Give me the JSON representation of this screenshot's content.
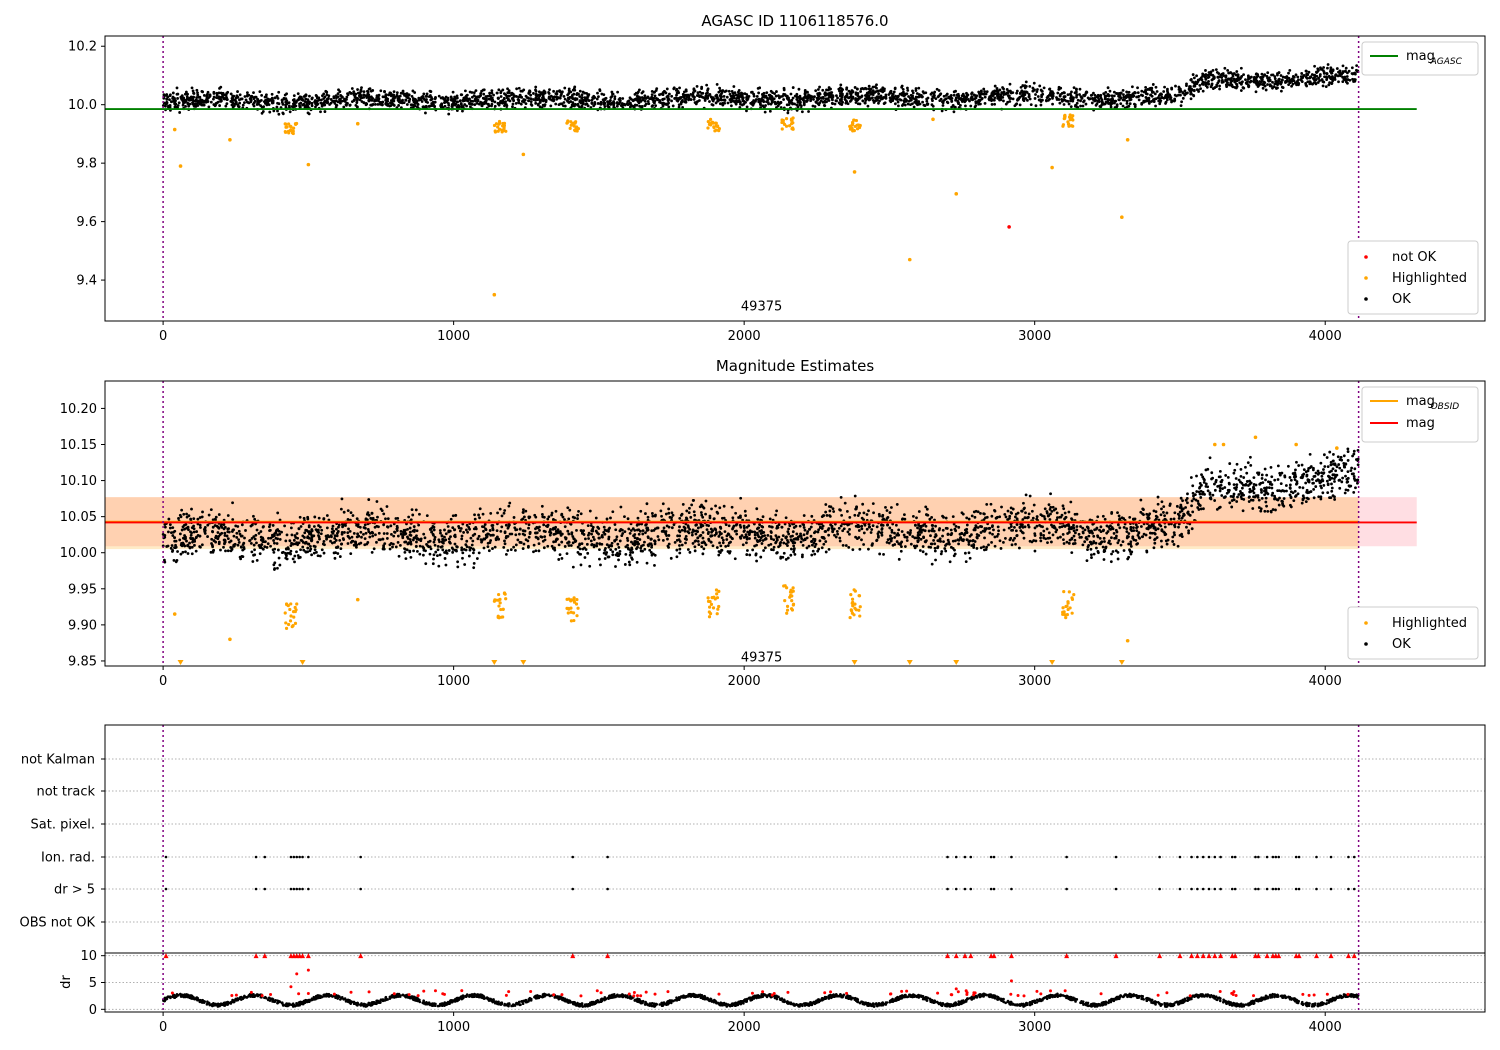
{
  "chart_data": [
    {
      "type": "scatter",
      "title": "AGASC ID 1106118576.0",
      "xlim": [
        -200,
        4550
      ],
      "ylim": [
        9.26,
        10.235
      ],
      "xticks": [
        "0",
        "1000",
        "2000",
        "3000",
        "4000"
      ],
      "yticks": [
        "9.4",
        "9.6",
        "9.8",
        "10.0",
        "10.2"
      ],
      "vlines": [
        0,
        4115
      ],
      "annotation": {
        "x": 2060,
        "y": 9.31,
        "text": "49375"
      },
      "lines": [
        {
          "name": "mag",
          "sub": "AGASC",
          "color": "#008000",
          "value": 9.985,
          "x": [
            -200,
            4315
          ]
        }
      ],
      "legend_top": [
        {
          "name": "mag",
          "sub": "AGASC",
          "color": "#008000",
          "kind": "line"
        }
      ],
      "legend_bottom": [
        {
          "name": "not OK",
          "color": "#ff0000"
        },
        {
          "name": "Highlighted",
          "color": "#ffa500"
        },
        {
          "name": "OK",
          "color": "#000000"
        }
      ],
      "series": [
        {
          "name": "not OK",
          "color": "#ff0000",
          "points": [
            [
              2912,
              9.582
            ]
          ]
        },
        {
          "name": "Highlighted",
          "color": "#ffa500",
          "points": [
            [
              40,
              9.915
            ],
            [
              60,
              9.79
            ],
            [
              230,
              9.88
            ],
            [
              500,
              9.795
            ],
            [
              670,
              9.935
            ],
            [
              1140,
              9.35
            ],
            [
              1240,
              9.83
            ],
            [
              2380,
              9.77
            ],
            [
              2570,
              9.47
            ],
            [
              2650,
              9.95
            ],
            [
              2730,
              9.695
            ],
            [
              3060,
              9.785
            ],
            [
              3300,
              9.615
            ],
            [
              3320,
              9.88
            ]
          ]
        },
        {
          "name": "OK",
          "color": "#000000"
        }
      ],
      "clusters": [
        [
          440,
          9.92
        ],
        [
          1160,
          9.925
        ],
        [
          1410,
          9.925
        ],
        [
          1895,
          9.93
        ],
        [
          2150,
          9.935
        ],
        [
          2380,
          9.93
        ],
        [
          3115,
          9.945
        ]
      ],
      "trend": {
        "x": [
          0,
          3500,
          3600,
          4115
        ],
        "y": [
          10.01,
          10.03,
          10.085,
          10.095
        ],
        "spread": 0.03
      }
    },
    {
      "type": "scatter",
      "title": "Magnitude Estimates",
      "xlim": [
        -200,
        4550
      ],
      "ylim": [
        9.843,
        10.238
      ],
      "xticks": [
        "0",
        "1000",
        "2000",
        "3000",
        "4000"
      ],
      "yticks": [
        "9.85",
        "9.90",
        "9.95",
        "10.00",
        "10.05",
        "10.10",
        "10.15",
        "10.20"
      ],
      "vlines": [
        0,
        4115
      ],
      "annotation": {
        "x": 2060,
        "y": 9.855,
        "text": "49375"
      },
      "band_pink": {
        "y": [
          10.009,
          10.077
        ],
        "x": [
          -200,
          4315
        ]
      },
      "band_orange": {
        "y": [
          10.005,
          10.077
        ],
        "x": [
          -200,
          4115
        ]
      },
      "lines": [
        {
          "name": "mag",
          "sub": "OBSID",
          "color": "#ffa500",
          "value": 10.043,
          "x": [
            -200,
            4115
          ]
        },
        {
          "name": "mag",
          "sub": "",
          "color": "#ff0000",
          "value": 10.042,
          "x": [
            -200,
            4315
          ]
        }
      ],
      "legend_top": [
        {
          "name": "mag",
          "sub": "OBSID",
          "color": "#ffa500",
          "kind": "line"
        },
        {
          "name": "mag",
          "sub": "",
          "color": "#ff0000",
          "kind": "line"
        }
      ],
      "legend_bottom": [
        {
          "name": "Highlighted",
          "color": "#ffa500"
        },
        {
          "name": "OK",
          "color": "#000000"
        }
      ],
      "series": [
        {
          "name": "Highlighted",
          "color": "#ffa500",
          "points": [
            [
              40,
              9.915
            ],
            [
              230,
              9.88
            ],
            [
              670,
              9.935
            ],
            [
              3320,
              9.878
            ],
            [
              3620,
              10.15
            ],
            [
              3650,
              10.15
            ],
            [
              3760,
              10.16
            ],
            [
              3900,
              10.15
            ],
            [
              4040,
              10.145
            ]
          ]
        },
        {
          "name": "OK",
          "color": "#000000"
        }
      ],
      "clusters": [
        [
          440,
          9.91
        ],
        [
          1160,
          9.925
        ],
        [
          1410,
          9.925
        ],
        [
          1895,
          9.93
        ],
        [
          2150,
          9.935
        ],
        [
          2380,
          9.93
        ],
        [
          3115,
          9.93
        ]
      ],
      "floor_markers": [
        60,
        480,
        1140,
        1240,
        2380,
        2570,
        2730,
        3060,
        3300
      ],
      "trend": {
        "x": [
          0,
          3500,
          3600,
          4115
        ],
        "y": [
          10.02,
          10.035,
          10.09,
          10.105
        ],
        "spread": 0.03
      }
    },
    {
      "type": "scatter",
      "title": "",
      "xlim": [
        -200,
        4550
      ],
      "xticks": [
        "0",
        "1000",
        "2000",
        "3000",
        "4000"
      ],
      "flag_labels": [
        "not Kalman",
        "not track",
        "Sat. pixel.",
        "Ion. rad.",
        "dr > 5",
        "OBS not OK"
      ],
      "flag_x": [
        10,
        320,
        350,
        440,
        450,
        460,
        470,
        480,
        500,
        680,
        1410,
        1530,
        2700,
        2730,
        2760,
        2780,
        2850,
        2860,
        2920,
        3110,
        3280,
        3430,
        3500,
        3540,
        3560,
        3580,
        3600,
        3620,
        3640,
        3680,
        3690,
        3760,
        3770,
        3800,
        3820,
        3830,
        3840,
        3900,
        3910,
        3970,
        4020,
        4080,
        4100
      ],
      "dr_ylabel": "dr",
      "dr_yticks": [
        "0",
        "5",
        "10"
      ],
      "dr_ylim": [
        -0.5,
        10.5
      ],
      "dr_outliers": [
        [
          440,
          4.2
        ],
        [
          460,
          6.6
        ],
        [
          500,
          7.3
        ],
        [
          2920,
          5.3
        ],
        [
          2730,
          3.8
        ]
      ],
      "vlines": [
        0,
        4115
      ]
    }
  ]
}
